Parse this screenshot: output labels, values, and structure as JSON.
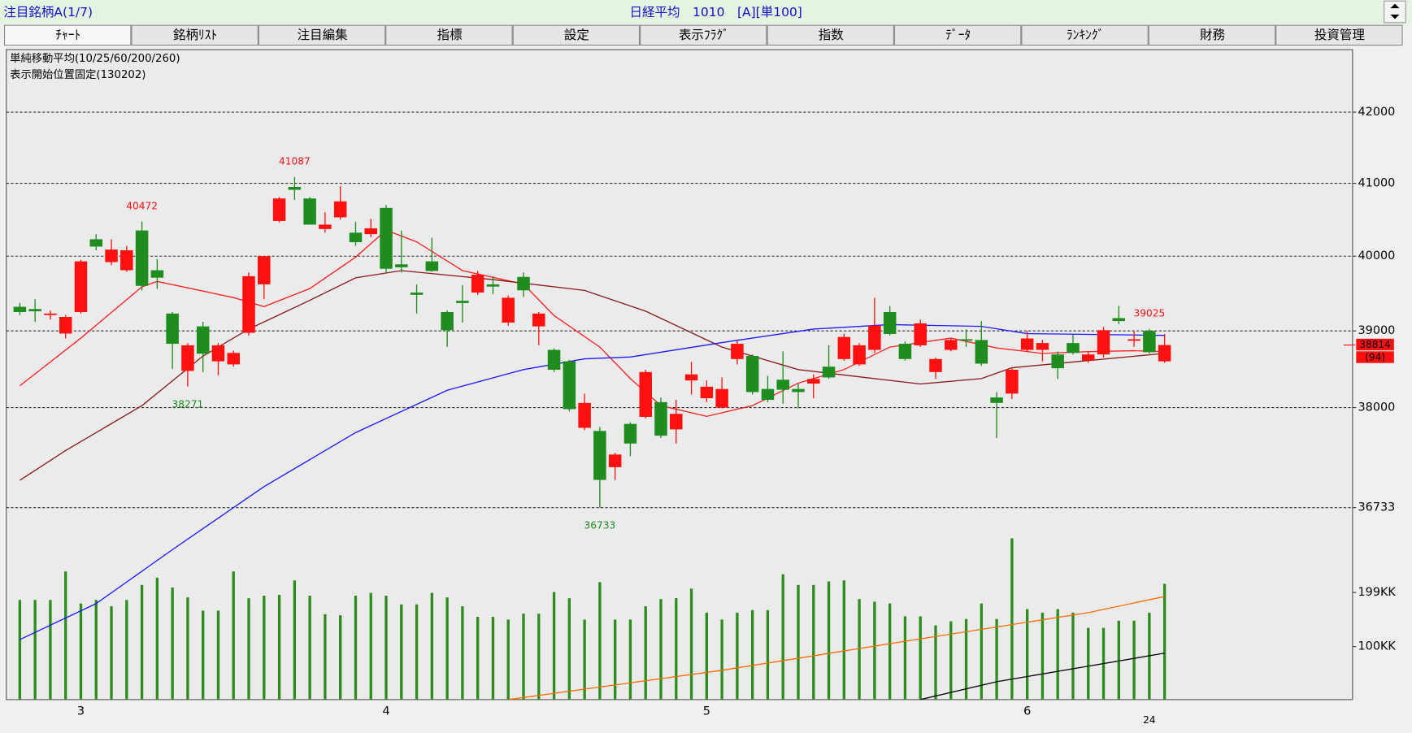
{
  "header": {
    "list_label": "注目銘柄A(1/7)",
    "instrument": "日経平均　1010　[A][単100]"
  },
  "tabs": [
    "ﾁｬｰﾄ",
    "銘柄ﾘｽﾄ",
    "注目編集",
    "指標",
    "設定",
    "表示ﾌﾗｸﾞ",
    "指数",
    "ﾃﾞｰﾀ",
    "ﾗﾝｷﾝｸﾞ",
    "財務",
    "投資管理"
  ],
  "chart_data": {
    "type": "candlestick",
    "notes": [
      "単純移動平均(10/25/60/200/260)",
      "表示開始位置固定(130202)"
    ],
    "categories": [
      null,
      null,
      null,
      null,
      "3",
      null,
      null,
      null,
      null,
      null,
      null,
      null,
      null,
      null,
      null,
      null,
      null,
      null,
      null,
      null,
      null,
      null,
      null,
      null,
      "4",
      null,
      null,
      null,
      null,
      null,
      null,
      null,
      null,
      null,
      null,
      null,
      null,
      null,
      null,
      null,
      null,
      null,
      null,
      null,
      null,
      "5",
      null,
      null,
      null,
      null,
      null,
      null,
      null,
      null,
      null,
      null,
      null,
      null,
      null,
      null,
      null,
      null,
      null,
      null,
      null,
      null,
      "6",
      null,
      null,
      null,
      null,
      null,
      null,
      null,
      null,
      null
    ],
    "year_label": {
      "index": 74,
      "label": "24"
    },
    "open": [
      39320,
      39290,
      39210,
      38965,
      39250,
      40230,
      39920,
      39810,
      40350,
      39810,
      39230,
      38475,
      39060,
      38600,
      38560,
      38975,
      39620,
      40480,
      40950,
      40790,
      40370,
      40530,
      40320,
      40300,
      40660,
      39890,
      39510,
      39930,
      39250,
      39400,
      39510,
      39620,
      39110,
      39720,
      39060,
      38750,
      38600,
      37740,
      37700,
      37240,
      37790,
      37880,
      38070,
      37720,
      38350,
      38120,
      38000,
      38630,
      38670,
      38240,
      38360,
      38240,
      38310,
      38530,
      38630,
      38560,
      38750,
      39250,
      38830,
      38810,
      38460,
      38750,
      38890,
      38880,
      38130,
      38180,
      38750,
      38750,
      38690,
      38840,
      38610,
      38690,
      39170,
      38870,
      39000,
      38600
    ],
    "high": [
      39370,
      39420,
      39270,
      39210,
      39950,
      40300,
      40230,
      40140,
      40472,
      39960,
      39250,
      38840,
      39120,
      38840,
      38740,
      39780,
      40000,
      40810,
      41087,
      40810,
      40600,
      40960,
      40470,
      40510,
      40700,
      40350,
      39620,
      40250,
      39270,
      39610,
      39800,
      39730,
      39470,
      39780,
      39250,
      38770,
      38620,
      38180,
      37750,
      37420,
      37810,
      38490,
      38130,
      38100,
      38590,
      38350,
      38390,
      38870,
      38690,
      38410,
      38730,
      38310,
      38430,
      38810,
      38960,
      38840,
      39440,
      39330,
      38860,
      39150,
      38650,
      38900,
      39020,
      39130,
      38200,
      38510,
      39000,
      38880,
      38730,
      38950,
      38720,
      39050,
      39330,
      38990,
      39025,
      38960
    ],
    "low": [
      39210,
      39120,
      39150,
      38900,
      39230,
      40080,
      39880,
      39790,
      39540,
      39560,
      38500,
      38271,
      38460,
      38420,
      38530,
      38940,
      39420,
      40460,
      40770,
      40430,
      40320,
      40500,
      40140,
      40260,
      39770,
      39780,
      39230,
      39790,
      38790,
      39110,
      39480,
      39490,
      39070,
      39450,
      38810,
      38460,
      37950,
      37710,
      36733,
      37080,
      37380,
      37860,
      37610,
      37540,
      38170,
      38070,
      37990,
      38560,
      38170,
      38070,
      38050,
      37990,
      38120,
      38370,
      38610,
      38540,
      38710,
      38940,
      38610,
      38790,
      38370,
      38730,
      38790,
      38540,
      37610,
      38110,
      38730,
      38600,
      38370,
      38690,
      38580,
      38650,
      39090,
      38790,
      38700,
      38580
    ],
    "close": [
      39250,
      39260,
      39230,
      39185,
      39930,
      40130,
      40090,
      40080,
      39600,
      39710,
      38830,
      38810,
      38700,
      38810,
      38710,
      39730,
      40000,
      40790,
      40910,
      40430,
      40430,
      40750,
      40190,
      40380,
      39830,
      39850,
      39480,
      39800,
      39010,
      39370,
      39750,
      39590,
      39440,
      39540,
      39230,
      38490,
      37980,
      38060,
      37080,
      37400,
      37540,
      38460,
      37640,
      37920,
      38430,
      38270,
      38240,
      38830,
      38200,
      38100,
      38230,
      38200,
      38370,
      38390,
      38920,
      38810,
      39070,
      38960,
      38630,
      39100,
      38630,
      38880,
      38870,
      38570,
      38060,
      38490,
      38900,
      38840,
      38510,
      38710,
      38690,
      39010,
      39130,
      38890,
      38720,
      38814
    ],
    "up_color": "#ff1010",
    "down_color": "#1e8c1e",
    "log_scale": true,
    "ylim": [
      34420,
      42900
    ],
    "yticks": [
      42000,
      41000,
      40000,
      39000,
      38000,
      36733
    ],
    "grid": true,
    "ma_series": [
      {
        "color": "#ff2020",
        "x": [
          0,
          4,
          8,
          9,
          14,
          16,
          19,
          22,
          24,
          26,
          29,
          33,
          35,
          38,
          40,
          42,
          45,
          48,
          51,
          54,
          57,
          61,
          64,
          67,
          70,
          73,
          75
        ],
        "values": [
          38281,
          38905,
          39587,
          39659,
          39443,
          39323,
          39563,
          39987,
          40354,
          40195,
          39805,
          39623,
          39203,
          38787,
          38375,
          38025,
          37887,
          38025,
          38316,
          38492,
          38787,
          38905,
          38775,
          38704,
          38727,
          38739,
          38727
        ]
      },
      {
        "color": "#8b1a1a",
        "x": [
          0,
          3,
          8,
          12,
          15,
          19,
          22,
          25,
          31,
          37,
          41,
          46,
          51,
          55,
          59,
          63,
          65,
          70,
          75
        ],
        "values": [
          37075,
          37450,
          38025,
          38669,
          39024,
          39406,
          39708,
          39805,
          39684,
          39539,
          39262,
          38787,
          38492,
          38398,
          38305,
          38375,
          38516,
          38610,
          38704
        ]
      },
      {
        "color": "#1a1aff",
        "x": [
          0,
          5,
          10,
          16,
          22,
          28,
          33,
          37,
          40,
          46,
          52,
          57,
          63,
          66,
          75
        ],
        "values": [
          35127,
          35558,
          36214,
          36996,
          37679,
          38223,
          38492,
          38633,
          38657,
          38846,
          39024,
          39083,
          39060,
          38964,
          38941
        ]
      }
    ],
    "volume": {
      "color": "#2e8b1e",
      "log_scale": true,
      "ylim": [
        51,
        400
      ],
      "yticks": [
        {
          "value": 199,
          "label": "199KK"
        },
        {
          "value": 100,
          "label": "100KK"
        }
      ],
      "values": [
        181,
        181,
        181,
        260,
        173,
        181,
        167,
        181,
        219,
        240,
        212,
        187,
        158,
        158,
        260,
        185,
        191,
        193,
        232,
        191,
        151,
        149,
        191,
        198,
        191,
        171,
        171,
        198,
        187,
        167,
        146,
        146,
        141,
        152,
        152,
        200,
        185,
        141,
        227,
        141,
        141,
        167,
        183,
        185,
        209,
        154,
        141,
        154,
        159,
        159,
        251,
        219,
        219,
        229,
        232,
        183,
        177,
        173,
        147,
        147,
        131,
        138,
        142,
        173,
        142,
        396,
        161,
        154,
        161,
        154,
        127,
        127,
        139,
        139,
        154,
        222
      ],
      "ma_series": [
        {
          "color": "#ff6a00",
          "x": [
            32,
            46,
            58,
            70,
            75
          ],
          "values": [
            51,
            74,
            107,
            154,
            189
          ]
        },
        {
          "color": "#000000",
          "x": [
            59,
            64,
            70,
            75
          ],
          "values": [
            51,
            64,
            78,
            92
          ]
        }
      ]
    },
    "annotations": [
      {
        "index": 8,
        "value": 40472,
        "color": "#ff1010"
      },
      {
        "index": 18,
        "value": 41087,
        "color": "#ff1010"
      },
      {
        "index": 11,
        "value": 38271,
        "color": "#1e8c1e"
      },
      {
        "index": 38,
        "value": 36733,
        "color": "#1e8c1e"
      },
      {
        "index": 74,
        "value": 39025,
        "color": "#ff1010"
      }
    ],
    "current_price": 38814,
    "change_label": "(94)",
    "current_color": "#ff1010"
  }
}
